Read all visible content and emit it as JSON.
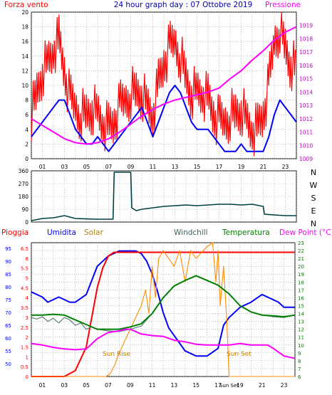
{
  "chart_data": [
    {
      "id": "wind_pressure",
      "type": "line",
      "title": "24 hour graph day : 07 Ottobre 2019",
      "left_label": "Forza vento",
      "right_label": "Pressione",
      "ylim_left": [
        0,
        20
      ],
      "left_ticks": [
        "0",
        "2",
        "4",
        "6",
        "8",
        "10",
        "12",
        "14",
        "16",
        "18",
        "20"
      ],
      "ylim_right": [
        1009,
        1020
      ],
      "right_ticks": [
        "1009",
        "1010",
        "1011",
        "1012",
        "1013",
        "1014",
        "1015",
        "1016",
        "1017",
        "1018",
        "1019"
      ],
      "x_ticks": [
        "01",
        "03",
        "05",
        "07",
        "09",
        "11",
        "13",
        "15",
        "17",
        "19",
        "21",
        "23"
      ],
      "series": [
        {
          "color": "#ff0000",
          "axis": "left",
          "x": [
            0,
            0.5,
            1,
            1.5,
            2,
            2.5,
            3,
            3.5,
            4,
            4.5,
            5,
            5.5,
            6,
            6.5,
            7,
            7.5,
            8,
            8.5,
            9,
            9.5,
            10,
            10.5,
            11,
            11.5,
            12,
            12.5,
            13,
            13.5,
            14,
            14.5,
            15,
            15.5,
            16,
            16.5,
            17,
            17.5,
            18,
            18.5,
            19,
            19.5,
            20,
            20.5,
            21,
            21.5,
            22,
            22.5,
            23,
            23.5,
            24
          ],
          "values": [
            6,
            9,
            12,
            13,
            15,
            16,
            12,
            8,
            7,
            6,
            6,
            7,
            6,
            5,
            4,
            5,
            7,
            8,
            9,
            9,
            9,
            7,
            6,
            10,
            13,
            15,
            16,
            14,
            11,
            9,
            9,
            9,
            8,
            6,
            5,
            5,
            6,
            6,
            7,
            5,
            4,
            4,
            6,
            10,
            16,
            18,
            15,
            13,
            12
          ]
        },
        {
          "color": "#0000ff",
          "axis": "left",
          "x": [
            0,
            0.5,
            1,
            1.5,
            2,
            2.5,
            3,
            3.5,
            4,
            4.5,
            5,
            5.5,
            6,
            6.5,
            7,
            7.5,
            8,
            8.5,
            9,
            9.5,
            10,
            10.5,
            11,
            11.5,
            12,
            12.5,
            13,
            13.5,
            14,
            14.5,
            15,
            15.5,
            16,
            16.5,
            17,
            17.5,
            18,
            18.5,
            19,
            19.5,
            20,
            20.5,
            21,
            21.5,
            22,
            22.5,
            23,
            23.5,
            24
          ],
          "values": [
            3,
            4,
            5,
            6,
            7,
            8,
            8,
            6,
            4,
            3,
            2,
            2,
            3,
            2,
            1,
            2,
            3,
            4,
            5,
            6,
            7,
            5,
            3,
            5,
            7,
            9,
            10,
            9,
            7,
            5,
            4,
            4,
            4,
            3,
            2,
            1,
            1,
            1,
            2,
            1,
            1,
            1,
            1,
            3,
            6,
            8,
            7,
            6,
            5
          ]
        },
        {
          "color": "#ff00ff",
          "axis": "right",
          "x": [
            0,
            1,
            2,
            3,
            4,
            5,
            6,
            7,
            8,
            9,
            10,
            11,
            12,
            13,
            14,
            15,
            16,
            17,
            18,
            19,
            20,
            21,
            22,
            23,
            24
          ],
          "values": [
            1012,
            1011.5,
            1011,
            1010.5,
            1010.2,
            1010.1,
            1010.2,
            1010.5,
            1011,
            1011.6,
            1012.2,
            1012.7,
            1013.1,
            1013.4,
            1013.6,
            1013.8,
            1014,
            1014.3,
            1015,
            1015.6,
            1016.4,
            1017.1,
            1017.9,
            1018.5,
            1018.9
          ]
        }
      ]
    },
    {
      "id": "wind_direction",
      "type": "line",
      "ylim": [
        0,
        360
      ],
      "y_ticks": [
        "0",
        "90",
        "180",
        "270",
        "360"
      ],
      "compass_labels": [
        "N",
        "W",
        "S",
        "E",
        "N"
      ],
      "series": [
        {
          "color": "#004040",
          "x": [
            0,
            1,
            2,
            3,
            4,
            5,
            6,
            7,
            7.4,
            7.5,
            9,
            9.1,
            9.5,
            10,
            11,
            12,
            13,
            14,
            15,
            16,
            17,
            18,
            19,
            20,
            21,
            21.1,
            22,
            23,
            24
          ],
          "values": [
            10,
            25,
            30,
            45,
            25,
            22,
            20,
            20,
            20,
            350,
            350,
            100,
            80,
            90,
            100,
            110,
            115,
            120,
            115,
            120,
            125,
            125,
            120,
            125,
            110,
            55,
            50,
            45,
            45
          ]
        }
      ]
    },
    {
      "id": "multi",
      "type": "line",
      "left_title": "Pioggia",
      "humidity_title": "Umidita",
      "solar_title": "Solar",
      "windchill_title": "Windchill",
      "temperature_title": "Temperatura",
      "dewpoint_title": "Dew Point (°C)",
      "rain_ticks": [
        "0",
        "0.5",
        "1",
        "1.5",
        "2",
        "2.5",
        "3",
        "3.5",
        "4",
        "4.5",
        "5",
        "5.5",
        "6",
        "6.5"
      ],
      "humidity_ticks": [
        "50",
        "55",
        "60",
        "65",
        "70",
        "75",
        "80",
        "85",
        "90",
        "95"
      ],
      "ylim_right": [
        6,
        23
      ],
      "right_ticks": [
        "6",
        "7",
        "8",
        "9",
        "10",
        "11",
        "12",
        "13",
        "14",
        "15",
        "16",
        "17",
        "18",
        "19",
        "20",
        "21",
        "22",
        "23"
      ],
      "x_ticks": [
        "01",
        "03",
        "05",
        "07",
        "09",
        "11",
        "13",
        "15",
        "17",
        "19",
        "21",
        "23"
      ],
      "sun_rise_label": "Sun Rise",
      "sun_set_label": "Sun Set",
      "sun_set_tick": "Sun Set",
      "series": [
        {
          "color": "#0000ff",
          "x": [
            0,
            1,
            1.5,
            2,
            2.5,
            3,
            3.5,
            4,
            5,
            6,
            7,
            8,
            9,
            9.5,
            10,
            10.5,
            11,
            11.5,
            12,
            12.5,
            13,
            13.5,
            14,
            15,
            16,
            17,
            17.5,
            18,
            19,
            20,
            21,
            22,
            22.5,
            23,
            24
          ],
          "values": [
            78,
            76,
            74,
            75,
            76,
            75,
            74,
            74,
            77,
            88,
            92,
            94,
            94,
            94,
            93,
            90,
            85,
            78,
            70,
            64,
            61,
            58,
            55,
            53,
            53,
            56,
            65,
            68,
            72,
            74,
            77,
            75,
            74,
            72,
            72
          ]
        },
        {
          "color": "#ff0000",
          "x": [
            0,
            1,
            2,
            3,
            4,
            5,
            5.5,
            6,
            6.5,
            7,
            7.5,
            8,
            10,
            12,
            14,
            16,
            18,
            20,
            22,
            24
          ],
          "values": [
            0,
            0,
            0,
            0,
            0.3,
            1.5,
            3,
            4.5,
            5.5,
            6.1,
            6.3,
            6.3,
            6.3,
            6.3,
            6.3,
            6.3,
            6.3,
            6.3,
            6.3,
            6.3
          ]
        },
        {
          "color": "#ff8c00",
          "x": [
            0,
            6,
            6.8,
            7.2,
            7.6,
            8,
            8.5,
            9,
            9.5,
            10,
            10.4,
            10.7,
            11,
            11.3,
            11.6,
            12,
            12.5,
            13,
            13.5,
            14,
            14.5,
            15,
            16,
            16.5,
            16.8,
            17,
            17.2,
            17.5,
            17.8,
            18,
            24
          ],
          "values": [
            6,
            6,
            6,
            6.4,
            7.5,
            9,
            10.5,
            12,
            13.5,
            15,
            17,
            14,
            20,
            16,
            21,
            22,
            21,
            20,
            22,
            18,
            22,
            21,
            22.5,
            23,
            18,
            22,
            15,
            20,
            13,
            6,
            6
          ]
        },
        {
          "color": "#608080",
          "x": [
            0,
            0.5,
            1,
            1.5,
            2,
            2.5,
            3,
            3.5,
            4,
            4.5,
            5,
            5.5,
            6,
            7,
            8,
            9,
            10,
            11,
            12,
            13,
            14,
            15,
            16,
            17,
            18,
            19,
            20,
            21,
            22,
            23,
            24
          ],
          "values": [
            13.5,
            13.3,
            13.6,
            13,
            13.4,
            12.8,
            13.5,
            13.2,
            12.5,
            12.8,
            12,
            12.3,
            12,
            11.8,
            11.7,
            12,
            12.4,
            14,
            16,
            17.5,
            18.2,
            18.8,
            18.2,
            17.6,
            16.5,
            15,
            14.2,
            13.8,
            13.6,
            13.5,
            13.8
          ]
        },
        {
          "color": "#008000",
          "x": [
            0,
            1,
            2,
            3,
            4,
            5,
            6,
            7,
            8,
            9,
            10,
            11,
            12,
            13,
            14,
            15,
            16,
            17,
            18,
            19,
            20,
            21,
            22,
            23,
            24
          ],
          "values": [
            13.8,
            13.8,
            13.9,
            13.8,
            13.2,
            12.6,
            12,
            12,
            12,
            12.3,
            12.7,
            14,
            16,
            17.5,
            18.2,
            18.8,
            18.2,
            17.6,
            16.5,
            15,
            14.2,
            13.8,
            13.7,
            13.6,
            13.8
          ]
        },
        {
          "color": "#ff00ff",
          "x": [
            0,
            1,
            2,
            3,
            4,
            5,
            6,
            7,
            8,
            8.5,
            9,
            10,
            11,
            12,
            13,
            14,
            15,
            16,
            17,
            18,
            19,
            20,
            21,
            21.5,
            22,
            23,
            24
          ],
          "values": [
            10.2,
            10,
            9.7,
            9.5,
            9.4,
            9.5,
            10.8,
            11.6,
            11.8,
            12,
            12,
            11.4,
            11.2,
            11.1,
            10.6,
            10.4,
            10.1,
            10,
            10,
            10,
            10.2,
            10,
            10,
            10,
            9.6,
            8.6,
            8.3
          ]
        }
      ]
    }
  ]
}
